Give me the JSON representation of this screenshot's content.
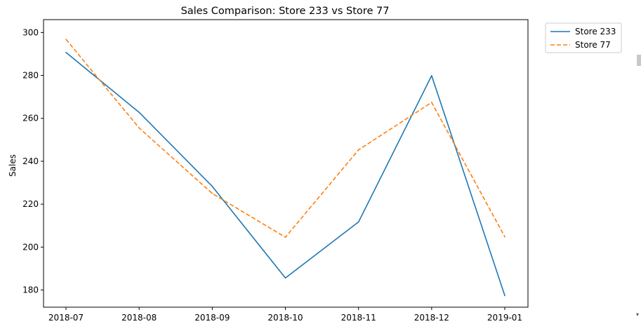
{
  "chart_data": {
    "type": "line",
    "title": "Sales Comparison: Store 233 vs Store 77",
    "xlabel": "",
    "ylabel": "Sales",
    "categories": [
      "2018-07",
      "2018-08",
      "2018-09",
      "2018-10",
      "2018-11",
      "2018-12",
      "2019-01"
    ],
    "yticks": [
      180,
      200,
      220,
      240,
      260,
      280,
      300
    ],
    "ylim": [
      172,
      306
    ],
    "grid": false,
    "legend_position": "upper-right-outside",
    "series": [
      {
        "name": "Store 233",
        "values": [
          290.7,
          262.8,
          228.3,
          185.6,
          211.7,
          279.9,
          177.4
        ],
        "color": "#1f77b4",
        "style": "solid"
      },
      {
        "name": "Store 77",
        "values": [
          296.8,
          255.5,
          225.0,
          204.6,
          245.3,
          267.4,
          204.8
        ],
        "color": "#ff7f0e",
        "style": "dashed"
      }
    ]
  },
  "scroll": {
    "arrow_icon": "chevron-down-icon",
    "arrow_glyph": "▾"
  }
}
